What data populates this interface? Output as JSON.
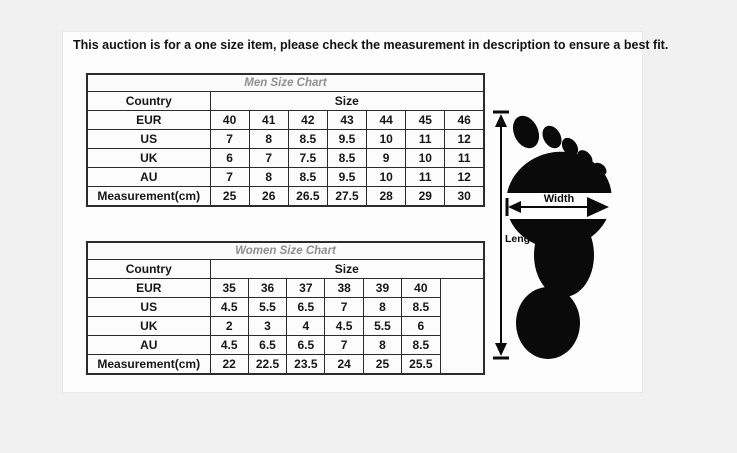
{
  "notice": "This auction is for a one size item, please check the measurement in description to ensure a best fit.",
  "men_chart": {
    "title": "Men Size Chart",
    "country_header": "Country",
    "size_header": "Size",
    "rows": [
      {
        "label": "EUR",
        "values": [
          "40",
          "41",
          "42",
          "43",
          "44",
          "45",
          "46"
        ]
      },
      {
        "label": "US",
        "values": [
          "7",
          "8",
          "8.5",
          "9.5",
          "10",
          "11",
          "12"
        ]
      },
      {
        "label": "UK",
        "values": [
          "6",
          "7",
          "7.5",
          "8.5",
          "9",
          "10",
          "11"
        ]
      },
      {
        "label": "AU",
        "values": [
          "7",
          "8",
          "8.5",
          "9.5",
          "10",
          "11",
          "12"
        ]
      },
      {
        "label": "Measurement(cm)",
        "values": [
          "25",
          "26",
          "26.5",
          "27.5",
          "28",
          "29",
          "30"
        ]
      }
    ]
  },
  "women_chart": {
    "title": "Women Size Chart",
    "country_header": "Country",
    "size_header": "Size",
    "rows": [
      {
        "label": "EUR",
        "values": [
          "35",
          "36",
          "37",
          "38",
          "39",
          "40"
        ]
      },
      {
        "label": "US",
        "values": [
          "4.5",
          "5.5",
          "6.5",
          "7",
          "8",
          "8.5"
        ]
      },
      {
        "label": "UK",
        "values": [
          "2",
          "3",
          "4",
          "4.5",
          "5.5",
          "6"
        ]
      },
      {
        "label": "AU",
        "values": [
          "4.5",
          "6.5",
          "6.5",
          "7",
          "8",
          "8.5"
        ]
      },
      {
        "label": "Measurement(cm)",
        "values": [
          "22",
          "22.5",
          "23.5",
          "24",
          "25",
          "25.5"
        ]
      }
    ]
  },
  "foot_diagram": {
    "width_label": "Width",
    "length_label": "Length"
  },
  "colors": {
    "page_background": "#f1f1f2",
    "panel_background": "#fdfdfd",
    "table_border": "#2b2b2b",
    "chart_title_text": "#8f8f8f",
    "body_text": "#161616",
    "foot_fill": "#0a0a0a"
  }
}
